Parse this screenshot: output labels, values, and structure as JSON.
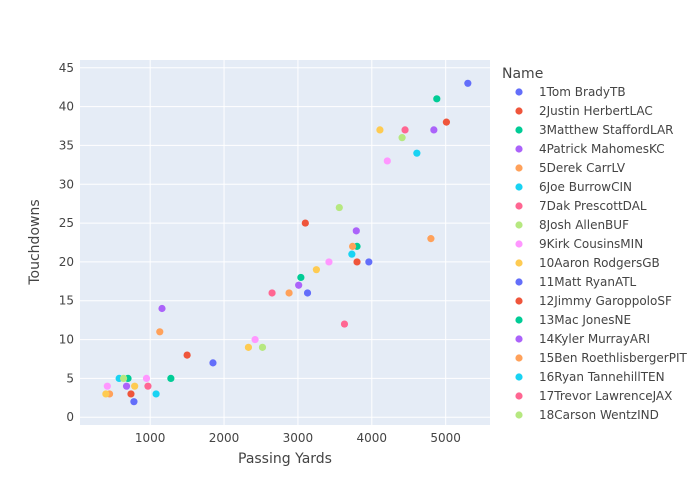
{
  "chart_data": {
    "type": "scatter",
    "xlabel": "Passing Yards",
    "ylabel": "Touchdowns",
    "xlim": [
      50,
      5600
    ],
    "ylim": [
      -1,
      46
    ],
    "x_ticks": [
      1000,
      2000,
      3000,
      4000,
      5000
    ],
    "y_ticks": [
      0,
      5,
      10,
      15,
      20,
      25,
      30,
      35,
      40,
      45
    ],
    "grid": true,
    "legend_title": "Name",
    "legend_position": "right",
    "series": [
      {
        "name": "1Tom BradyTB",
        "color": "#636efa",
        "points": [
          [
            5300,
            43
          ],
          [
            3960,
            20
          ],
          [
            3130,
            16
          ],
          [
            1850,
            7
          ],
          [
            780,
            2
          ]
        ]
      },
      {
        "name": "2Justin HerbertLAC",
        "color": "#ef553b",
        "points": [
          [
            5010,
            38
          ],
          [
            3100,
            25
          ],
          [
            3800,
            20
          ],
          [
            1500,
            8
          ],
          [
            740,
            3
          ]
        ]
      },
      {
        "name": "3Matthew StaffordLAR",
        "color": "#00cc96",
        "points": [
          [
            4880,
            41
          ],
          [
            3800,
            22
          ],
          [
            3040,
            18
          ],
          [
            1280,
            5
          ],
          [
            700,
            5
          ]
        ]
      },
      {
        "name": "4Patrick MahomesKC",
        "color": "#ab63fa",
        "points": [
          [
            4840,
            37
          ],
          [
            3790,
            24
          ],
          [
            3010,
            17
          ],
          [
            1160,
            14
          ],
          [
            680,
            4
          ]
        ]
      },
      {
        "name": "5Derek CarrLV",
        "color": "#ffa15a",
        "points": [
          [
            4800,
            23
          ],
          [
            3740,
            22
          ],
          [
            2880,
            16
          ],
          [
            1130,
            11
          ],
          [
            450,
            3
          ]
        ]
      },
      {
        "name": "6Joe BurrowCIN",
        "color": "#19d3f3",
        "points": [
          [
            4610,
            34
          ],
          [
            3730,
            21
          ],
          [
            1080,
            3
          ],
          [
            580,
            5
          ]
        ]
      },
      {
        "name": "7Dak PrescottDAL",
        "color": "#ff6692",
        "points": [
          [
            4450,
            37
          ],
          [
            3630,
            12
          ],
          [
            2650,
            16
          ],
          [
            970,
            4
          ]
        ]
      },
      {
        "name": "8Josh AllenBUF",
        "color": "#b6e880",
        "points": [
          [
            4410,
            36
          ],
          [
            3560,
            27
          ],
          [
            2520,
            9
          ],
          [
            640,
            5
          ]
        ]
      },
      {
        "name": "9Kirk CousinsMIN",
        "color": "#ff97ff",
        "points": [
          [
            4210,
            33
          ],
          [
            3420,
            20
          ],
          [
            2420,
            10
          ],
          [
            950,
            5
          ],
          [
            420,
            4
          ]
        ]
      },
      {
        "name": "10Aaron RodgersGB",
        "color": "#fecb52",
        "points": [
          [
            4110,
            37
          ],
          [
            3250,
            19
          ],
          [
            2330,
            9
          ],
          [
            790,
            4
          ],
          [
            400,
            3
          ]
        ]
      },
      {
        "name": "11Matt RyanATL",
        "color": "#636efa",
        "points": []
      },
      {
        "name": "12Jimmy GaroppoloSF",
        "color": "#ef553b",
        "points": []
      },
      {
        "name": "13Mac JonesNE",
        "color": "#00cc96",
        "points": []
      },
      {
        "name": "14Kyler MurrayARI",
        "color": "#ab63fa",
        "points": []
      },
      {
        "name": "15Ben RoethlisbergerPIT",
        "color": "#ffa15a",
        "points": []
      },
      {
        "name": "16Ryan TannehillTEN",
        "color": "#19d3f3",
        "points": []
      },
      {
        "name": "17Trevor LawrenceJAX",
        "color": "#ff6692",
        "points": []
      },
      {
        "name": "18Carson WentzIND",
        "color": "#b6e880",
        "points": []
      }
    ]
  }
}
